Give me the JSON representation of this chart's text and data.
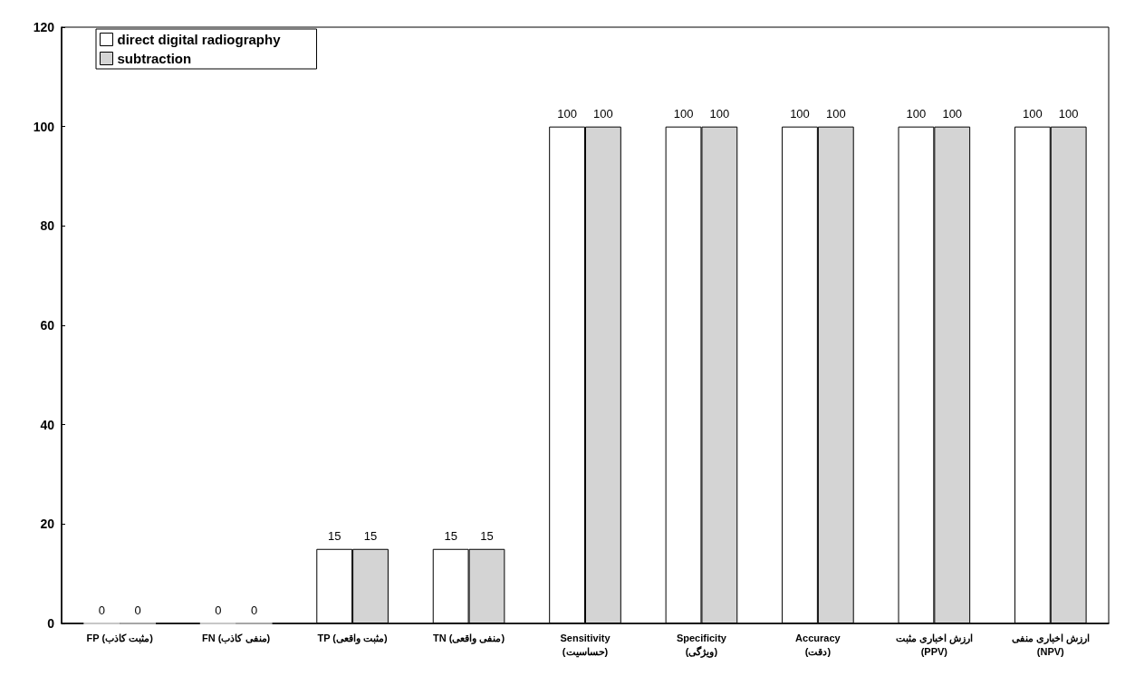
{
  "chart_data": {
    "type": "bar",
    "categories": [
      "FP (مثبت کاذب)",
      "FN (منفی کاذب)",
      "TP (مثبت واقعی)",
      "TN (منفی واقعی)",
      "Sensitivity\n(حساسیت)",
      "Specificity\n(ویژگی)",
      "Accuracy\n(دقت)",
      "ارزش اخباری مثبت\n(PPV)",
      "ارزش اخباری منفی\n(NPV)"
    ],
    "series": [
      {
        "name": "direct digital radiography",
        "color": "#ffffff",
        "values": [
          0,
          0,
          15,
          15,
          100,
          100,
          100,
          100,
          100
        ]
      },
      {
        "name": "subtraction",
        "color": "#d4d4d4",
        "values": [
          0,
          0,
          15,
          15,
          100,
          100,
          100,
          100,
          100
        ]
      }
    ],
    "ylim": [
      0,
      120
    ],
    "yticks": [
      0,
      20,
      40,
      60,
      80,
      100,
      120
    ],
    "grid": false,
    "legend": "top left",
    "data_labels": true
  }
}
